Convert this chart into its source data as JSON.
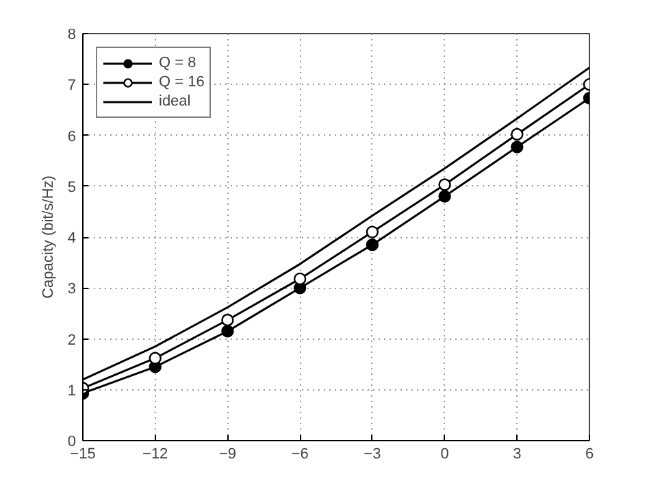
{
  "chart_data": {
    "type": "line",
    "ylabel": "Capacity (bit/s/Hz)",
    "x": [
      -15,
      -12,
      -9,
      -6,
      -3,
      0,
      3,
      6
    ],
    "xlim": [
      -15,
      6
    ],
    "xticks": [
      -15,
      -12,
      -9,
      -6,
      -3,
      0,
      3,
      6
    ],
    "ylim": [
      0,
      8
    ],
    "yticks": [
      0,
      1,
      2,
      3,
      4,
      5,
      6,
      7,
      8
    ],
    "grid": true,
    "legend": "top left",
    "series": [
      {
        "name": "Q = 8",
        "color": "#000000",
        "marker": "circle",
        "colors": [
          "#000000",
          "#000000",
          "#000000",
          "#000000",
          "#000000",
          "#000000",
          "#000000",
          "#000000"
        ],
        "values": [
          0.93,
          1.45,
          2.15,
          3.0,
          3.85,
          4.8,
          5.77,
          6.73
        ]
      },
      {
        "name": "Q = 16",
        "color": "#000000",
        "marker": "circle",
        "colors": [
          "#ffffff",
          "#ffffff",
          "#ffffff",
          "#ffffff",
          "#ffffff",
          "#ffffff",
          "#ffffff",
          "#ffffff"
        ],
        "values": [
          1.03,
          1.62,
          2.37,
          3.18,
          4.1,
          5.03,
          6.02,
          7.0
        ]
      },
      {
        "name": "ideal",
        "color": "#000000",
        "marker": "none",
        "values": [
          1.2,
          1.85,
          2.62,
          3.47,
          4.42,
          5.35,
          6.33,
          7.33
        ]
      }
    ]
  }
}
